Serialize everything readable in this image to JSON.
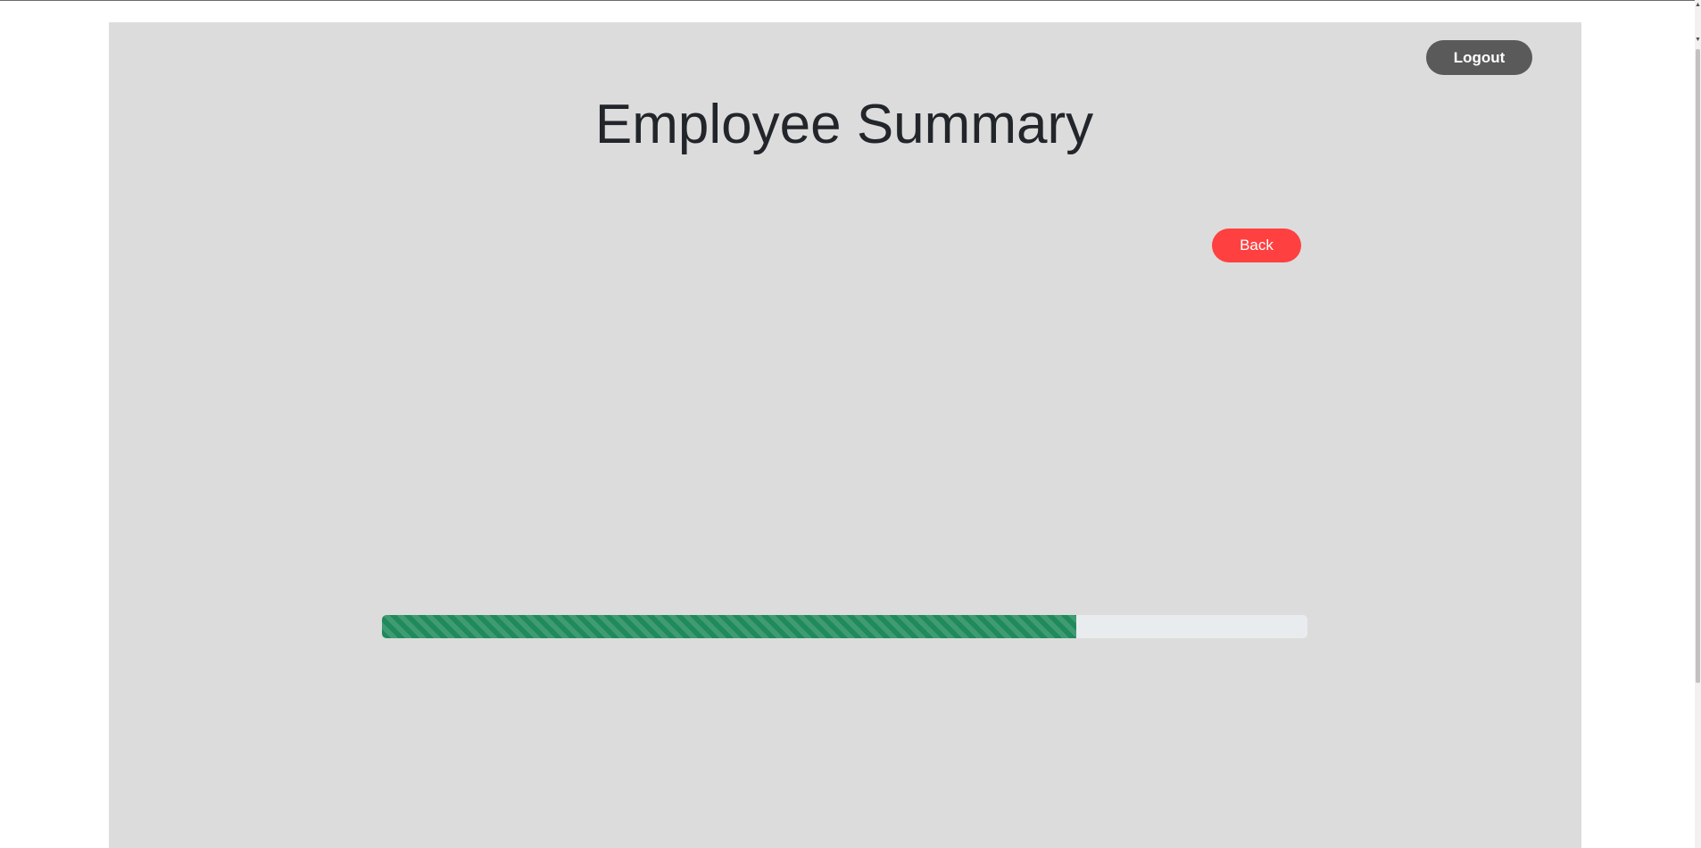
{
  "header": {
    "logout_label": "Logout",
    "title": "Employee Summary"
  },
  "actions": {
    "back_label": "Back"
  },
  "progress": {
    "fraction": 0.75,
    "bar_color": "#1f8a5b",
    "track_color": "#e9ecef"
  },
  "colors": {
    "panel_background": "#dcdcdc",
    "logout_button": "#5a5a5a",
    "back_button": "#ff4040",
    "title_text": "#22252a"
  },
  "scrollbar": {
    "up_icon": "triangle-up",
    "down_icon": "triangle-down"
  }
}
